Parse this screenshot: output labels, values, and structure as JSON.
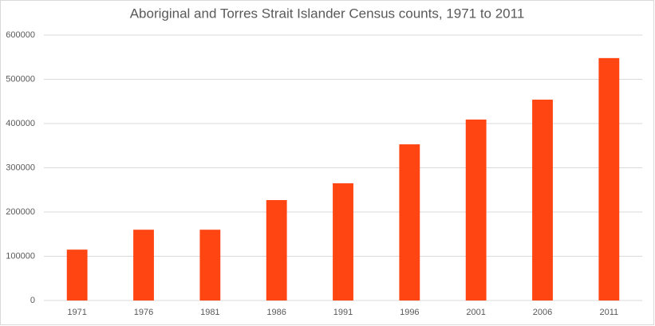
{
  "chart_data": {
    "type": "bar",
    "title": "Aboriginal and Torres Strait Islander Census counts, 1971 to 2011",
    "categories": [
      "1971",
      "1976",
      "1981",
      "1986",
      "1991",
      "1996",
      "2001",
      "2006",
      "2011"
    ],
    "values": [
      115000,
      160000,
      160000,
      227000,
      265000,
      353000,
      409000,
      454000,
      548000
    ],
    "color": "#ff4511",
    "ylim": [
      0,
      600000
    ],
    "yticks": [
      0,
      100000,
      200000,
      300000,
      400000,
      500000,
      600000
    ],
    "grid": true
  }
}
